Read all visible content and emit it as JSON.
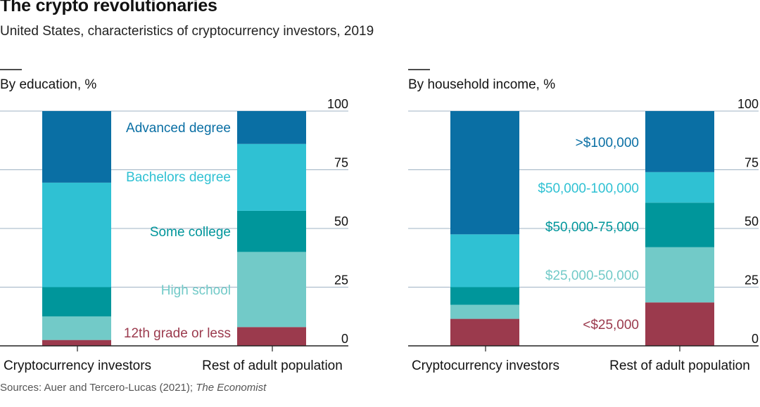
{
  "title": "The crypto revolutionaries",
  "subtitle": "United States, characteristics of cryptocurrency investors, 2019",
  "source": {
    "text": "Sources: Auer and Tercero-Lucas (2021); ",
    "publication": "The Economist"
  },
  "colors": {
    "gridline": "#9fb3c4",
    "axis": "#222222",
    "categories": [
      "#9b3a4d",
      "#72cac8",
      "#00969b",
      "#2fc1d3",
      "#0a6fa4"
    ]
  },
  "chart_data": [
    {
      "type": "bar",
      "stacked": true,
      "title": "By education, %",
      "categories": [
        "Cryptocurrency investors",
        "Rest of adult population"
      ],
      "yticks": [
        "0",
        "25",
        "50",
        "75",
        "100"
      ],
      "ylim": [
        0,
        100
      ],
      "series": [
        {
          "name": "12th grade or less",
          "values": [
            2.5,
            8
          ]
        },
        {
          "name": "High school",
          "values": [
            10,
            32
          ]
        },
        {
          "name": "Some college",
          "values": [
            12.5,
            17.5
          ]
        },
        {
          "name": "Bachelors degree",
          "values": [
            44.5,
            28.5
          ]
        },
        {
          "name": "Advanced degree",
          "values": [
            30.5,
            14
          ]
        }
      ]
    },
    {
      "type": "bar",
      "stacked": true,
      "title": "By household income, %",
      "categories": [
        "Cryptocurrency investors",
        "Rest of adult population"
      ],
      "yticks": [
        "0",
        "25",
        "50",
        "75",
        "100"
      ],
      "ylim": [
        0,
        100
      ],
      "series": [
        {
          "name": "<$25,000",
          "values": [
            11.5,
            18.5
          ]
        },
        {
          "name": "$25,000-50,000",
          "values": [
            6,
            23.5
          ]
        },
        {
          "name": "$50,000-75,000",
          "values": [
            7.5,
            19
          ]
        },
        {
          "name": "$50,000-100,000",
          "values": [
            22.5,
            13
          ]
        },
        {
          "name": ">$100,000",
          "values": [
            52.5,
            26
          ]
        }
      ]
    }
  ]
}
